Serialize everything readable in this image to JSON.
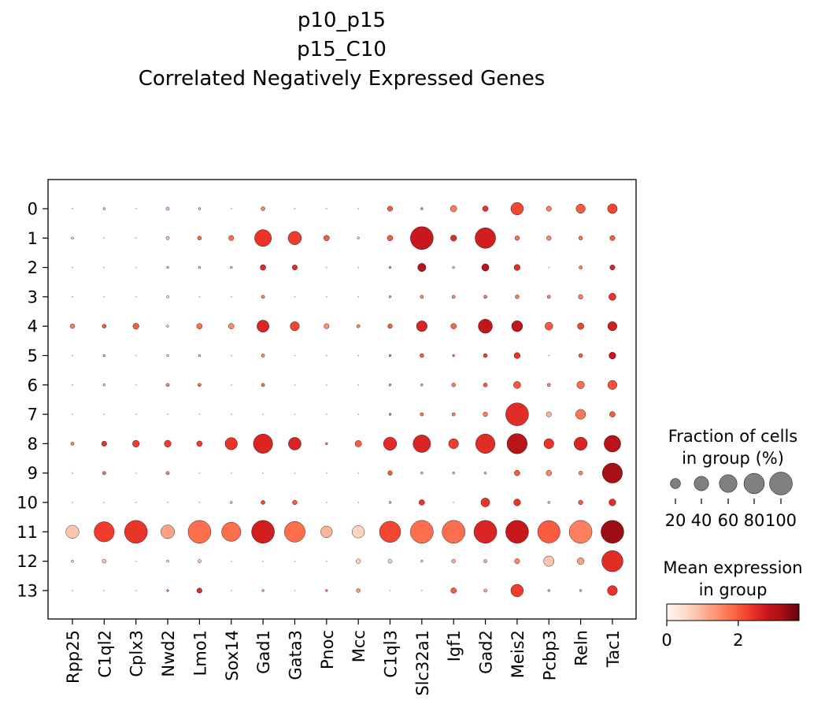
{
  "chart_data": {
    "type": "dotplot",
    "title_lines": [
      "p10_p15",
      "p15_C10",
      "Correlated Negatively Expressed Genes"
    ],
    "genes": [
      "Rpp25",
      "C1ql2",
      "Cplx3",
      "Nwd2",
      "Lmo1",
      "Sox14",
      "Gad1",
      "Gata3",
      "Pnoc",
      "Mcc",
      "C1ql3",
      "Slc32a1",
      "Igf1",
      "Gad2",
      "Meis2",
      "Pcbp3",
      "Reln",
      "Tac1"
    ],
    "groups": [
      "0",
      "1",
      "2",
      "3",
      "4",
      "5",
      "6",
      "7",
      "8",
      "9",
      "10",
      "11",
      "12",
      "13"
    ],
    "fraction_pct": [
      [
        0,
        1,
        0,
        2,
        1,
        0,
        3,
        0,
        0,
        0,
        5,
        1,
        8,
        6,
        30,
        5,
        16,
        18
      ],
      [
        1,
        0,
        0,
        2,
        3,
        5,
        54,
        34,
        6,
        1,
        6,
        100,
        7,
        81,
        4,
        4,
        3,
        5
      ],
      [
        0,
        0,
        0,
        1,
        1,
        1,
        6,
        5,
        0,
        0,
        1,
        13,
        1,
        10,
        7,
        0,
        2,
        5
      ],
      [
        0,
        0,
        0,
        1,
        0,
        0,
        2,
        0,
        0,
        0,
        1,
        2,
        2,
        2,
        3,
        2,
        4,
        10
      ],
      [
        4,
        3,
        7,
        1,
        6,
        6,
        28,
        16,
        5,
        2,
        4,
        22,
        6,
        38,
        23,
        12,
        8,
        16
      ],
      [
        0,
        1,
        0,
        1,
        1,
        0,
        2,
        0,
        0,
        0,
        1,
        3,
        1,
        3,
        7,
        0,
        3,
        9
      ],
      [
        0,
        1,
        0,
        2,
        2,
        0,
        2,
        0,
        0,
        0,
        1,
        1,
        3,
        3,
        10,
        2,
        11,
        16
      ],
      [
        0,
        0,
        0,
        0,
        0,
        0,
        0,
        0,
        0,
        0,
        1,
        2,
        2,
        4,
        100,
        5,
        19,
        6
      ],
      [
        2,
        5,
        9,
        9,
        6,
        29,
        71,
        31,
        1,
        8,
        33,
        59,
        19,
        72,
        78,
        19,
        33,
        53
      ],
      [
        0,
        2,
        0,
        2,
        0,
        0,
        0,
        0,
        0,
        0,
        4,
        1,
        1,
        1,
        6,
        6,
        3,
        77
      ],
      [
        0,
        0,
        0,
        0,
        0,
        1,
        3,
        4,
        0,
        0,
        1,
        6,
        0,
        15,
        9,
        1,
        4,
        9
      ],
      [
        33,
        78,
        100,
        36,
        100,
        70,
        100,
        82,
        26,
        30,
        86,
        100,
        100,
        100,
        100,
        96,
        100,
        100
      ],
      [
        1,
        3,
        0,
        1,
        2,
        0,
        0,
        0,
        0,
        4,
        3,
        1,
        3,
        2,
        5,
        21,
        9,
        86
      ],
      [
        0,
        0,
        0,
        1,
        5,
        0,
        1,
        0,
        1,
        3,
        0,
        0,
        6,
        2,
        30,
        1,
        1,
        19
      ]
    ],
    "mean_expression": [
      [
        0.3,
        0.8,
        0.3,
        0.8,
        0.8,
        0.3,
        1.5,
        0.4,
        0.3,
        0.3,
        2.0,
        1.5,
        1.6,
        2.4,
        2.2,
        1.6,
        2.0,
        2.2
      ],
      [
        0.5,
        0.3,
        0.3,
        0.8,
        1.8,
        1.8,
        2.4,
        2.3,
        2.0,
        0.5,
        2.0,
        2.8,
        2.5,
        2.7,
        1.8,
        1.5,
        1.7,
        2.0
      ],
      [
        0.2,
        0.2,
        0.2,
        0.8,
        0.8,
        0.8,
        2.5,
        2.5,
        0.3,
        0.2,
        1.2,
        3.0,
        0.8,
        3.0,
        2.5,
        0.5,
        1.6,
        2.6
      ],
      [
        0.2,
        0.2,
        0.2,
        0.5,
        0.3,
        0.3,
        1.5,
        0.3,
        0.2,
        0.2,
        1.2,
        1.5,
        1.5,
        1.6,
        1.6,
        1.5,
        1.6,
        2.4
      ],
      [
        1.6,
        2.0,
        2.0,
        0.5,
        1.8,
        1.5,
        2.6,
        2.2,
        1.4,
        1.5,
        2.0,
        2.6,
        1.9,
        2.9,
        2.9,
        2.0,
        2.2,
        2.7
      ],
      [
        0.2,
        1.0,
        0.2,
        0.5,
        0.8,
        0.3,
        1.5,
        0.3,
        0.3,
        0.3,
        1.5,
        2.0,
        1.6,
        2.3,
        2.4,
        0.5,
        2.0,
        2.8
      ],
      [
        0.2,
        0.8,
        0.2,
        1.5,
        1.8,
        0.2,
        1.8,
        0.2,
        0.2,
        0.2,
        1.3,
        1.3,
        1.6,
        2.0,
        2.0,
        1.5,
        1.8,
        2.1
      ],
      [
        0.2,
        0.2,
        0.2,
        0.2,
        0.2,
        0.2,
        0.5,
        0.2,
        0.2,
        0.2,
        1.5,
        1.7,
        1.6,
        1.6,
        2.5,
        1.0,
        1.7,
        2.0
      ],
      [
        1.5,
        2.4,
        2.3,
        2.3,
        2.3,
        2.4,
        2.6,
        2.6,
        1.6,
        2.0,
        2.5,
        2.6,
        2.3,
        2.5,
        3.0,
        2.4,
        2.6,
        3.0
      ],
      [
        0.2,
        1.8,
        0.2,
        1.5,
        0.2,
        0.2,
        0.5,
        0.2,
        0.2,
        0.2,
        2.0,
        1.0,
        1.0,
        1.0,
        2.0,
        1.5,
        1.5,
        3.2
      ],
      [
        0.2,
        0.2,
        0.5,
        0.2,
        0.5,
        0.8,
        2.2,
        2.0,
        0.2,
        0.2,
        1.0,
        2.4,
        0.3,
        2.4,
        2.4,
        1.0,
        2.0,
        2.5
      ],
      [
        0.8,
        2.3,
        2.4,
        1.2,
        1.8,
        1.8,
        2.7,
        1.8,
        1.0,
        0.6,
        2.2,
        1.8,
        1.8,
        2.6,
        2.8,
        2.0,
        1.6,
        3.3
      ],
      [
        0.5,
        0.8,
        0.2,
        0.5,
        0.8,
        0.2,
        0.2,
        0.2,
        0.2,
        0.6,
        0.6,
        0.5,
        1.0,
        1.0,
        1.5,
        0.8,
        1.2,
        2.5
      ],
      [
        0.2,
        0.2,
        0.2,
        1.5,
        2.5,
        0.2,
        1.2,
        0.2,
        1.5,
        1.3,
        0.2,
        0.2,
        2.0,
        1.0,
        2.3,
        1.0,
        1.0,
        2.4
      ]
    ],
    "size_legend": {
      "title_lines": [
        "Fraction of cells",
        "in group (%)"
      ],
      "values": [
        20,
        40,
        60,
        80,
        100
      ],
      "labels": [
        "20",
        "40",
        "60",
        "80",
        "100"
      ]
    },
    "color_legend": {
      "title_lines": [
        "Mean expression",
        "in group"
      ],
      "ticks": [
        0,
        2
      ],
      "tick_labels": [
        "0",
        "2"
      ],
      "vmin": 0,
      "vmax": 3.7
    },
    "colormap": "Reds",
    "colormap_stops": [
      "#fff5f0",
      "#fee0d2",
      "#fcbba1",
      "#fc9272",
      "#fb6a4a",
      "#ef3b2c",
      "#cb181d",
      "#a50f15",
      "#67000d"
    ]
  }
}
